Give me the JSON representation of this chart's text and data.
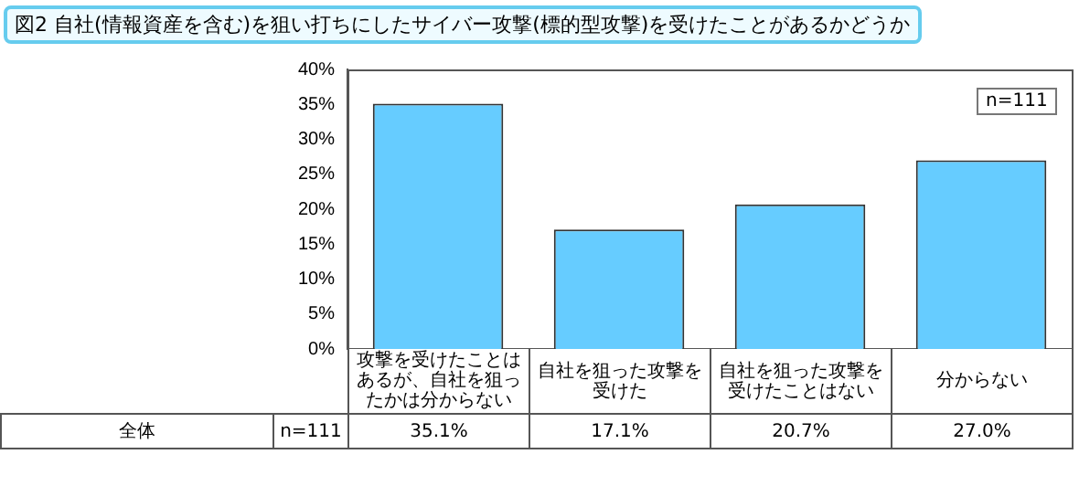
{
  "chart_data": {
    "type": "bar",
    "title": "図2 自社(情報資産を含む)を狙い打ちにしたサイバー攻撃(標的型攻撃)を受けたことがあるかどうか",
    "categories": [
      "攻撃を受けたことはあるが、自社を狙ったかは分からない",
      "自社を狙った攻撃を受けた",
      "自社を狙った攻撃を受けたことはない",
      "分からない"
    ],
    "values": [
      35.1,
      17.1,
      20.7,
      27.0
    ],
    "value_labels": [
      "35.1%",
      "17.1%",
      "20.7%",
      "27.0%"
    ],
    "color": "#66ccff",
    "ylim": [
      0,
      40
    ],
    "yticks": [
      {
        "value": 0,
        "label": "0%"
      },
      {
        "value": 5,
        "label": "5%"
      },
      {
        "value": 10,
        "label": "10%"
      },
      {
        "value": 15,
        "label": "15%"
      },
      {
        "value": 20,
        "label": "20%"
      },
      {
        "value": 25,
        "label": "25%"
      },
      {
        "value": 30,
        "label": "30%"
      },
      {
        "value": 35,
        "label": "35%"
      },
      {
        "value": 40,
        "label": "40%"
      }
    ],
    "annotations": [
      "n=111",
      "全体",
      "n=111"
    ],
    "grid": false,
    "legend": false
  }
}
